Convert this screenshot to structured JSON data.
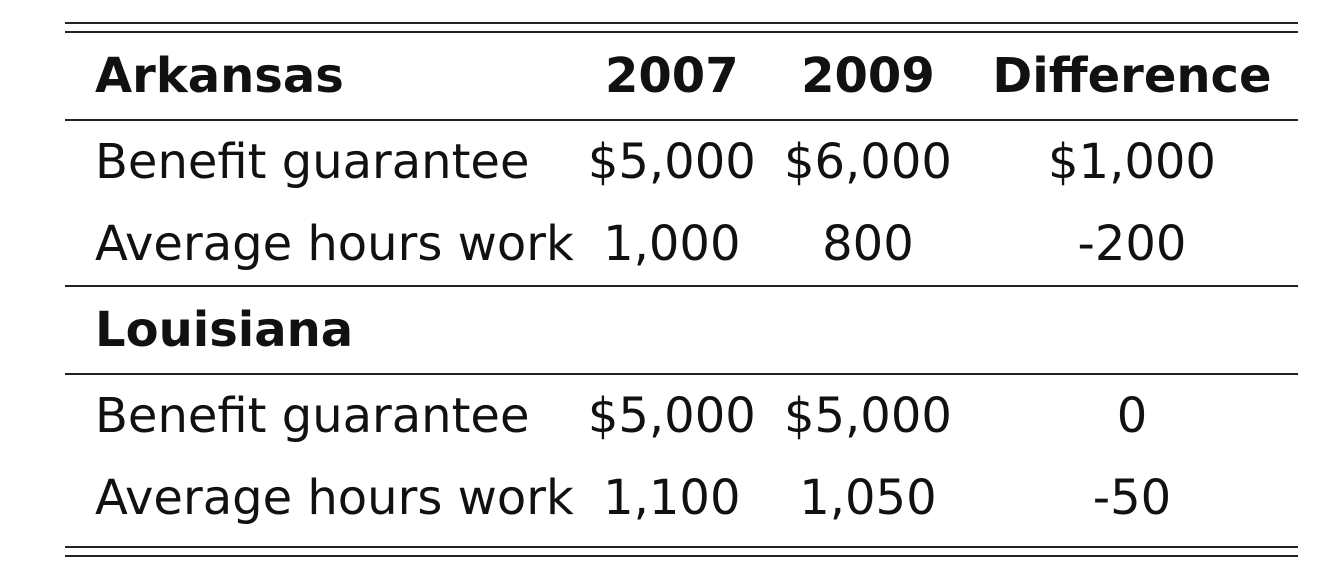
{
  "table": {
    "header": {
      "region": "Arkansas",
      "col_2007": "2007",
      "col_2009": "2009",
      "col_diff": "Difference"
    },
    "arkansas_rows": [
      {
        "label": "Benefit guarantee",
        "v2007": "$5,000",
        "v2009": "$6,000",
        "diff": "$1,000"
      },
      {
        "label": "Average hours work",
        "v2007": "1,000",
        "v2009": "800",
        "diff": "-200"
      }
    ],
    "louisiana_label": "Louisiana",
    "louisiana_rows": [
      {
        "label": "Benefit guarantee",
        "v2007": "$5,000",
        "v2009": "$5,000",
        "diff": "0"
      },
      {
        "label": "Average hours work",
        "v2007": "1,100",
        "v2009": "1,050",
        "diff": "-50"
      }
    ]
  }
}
